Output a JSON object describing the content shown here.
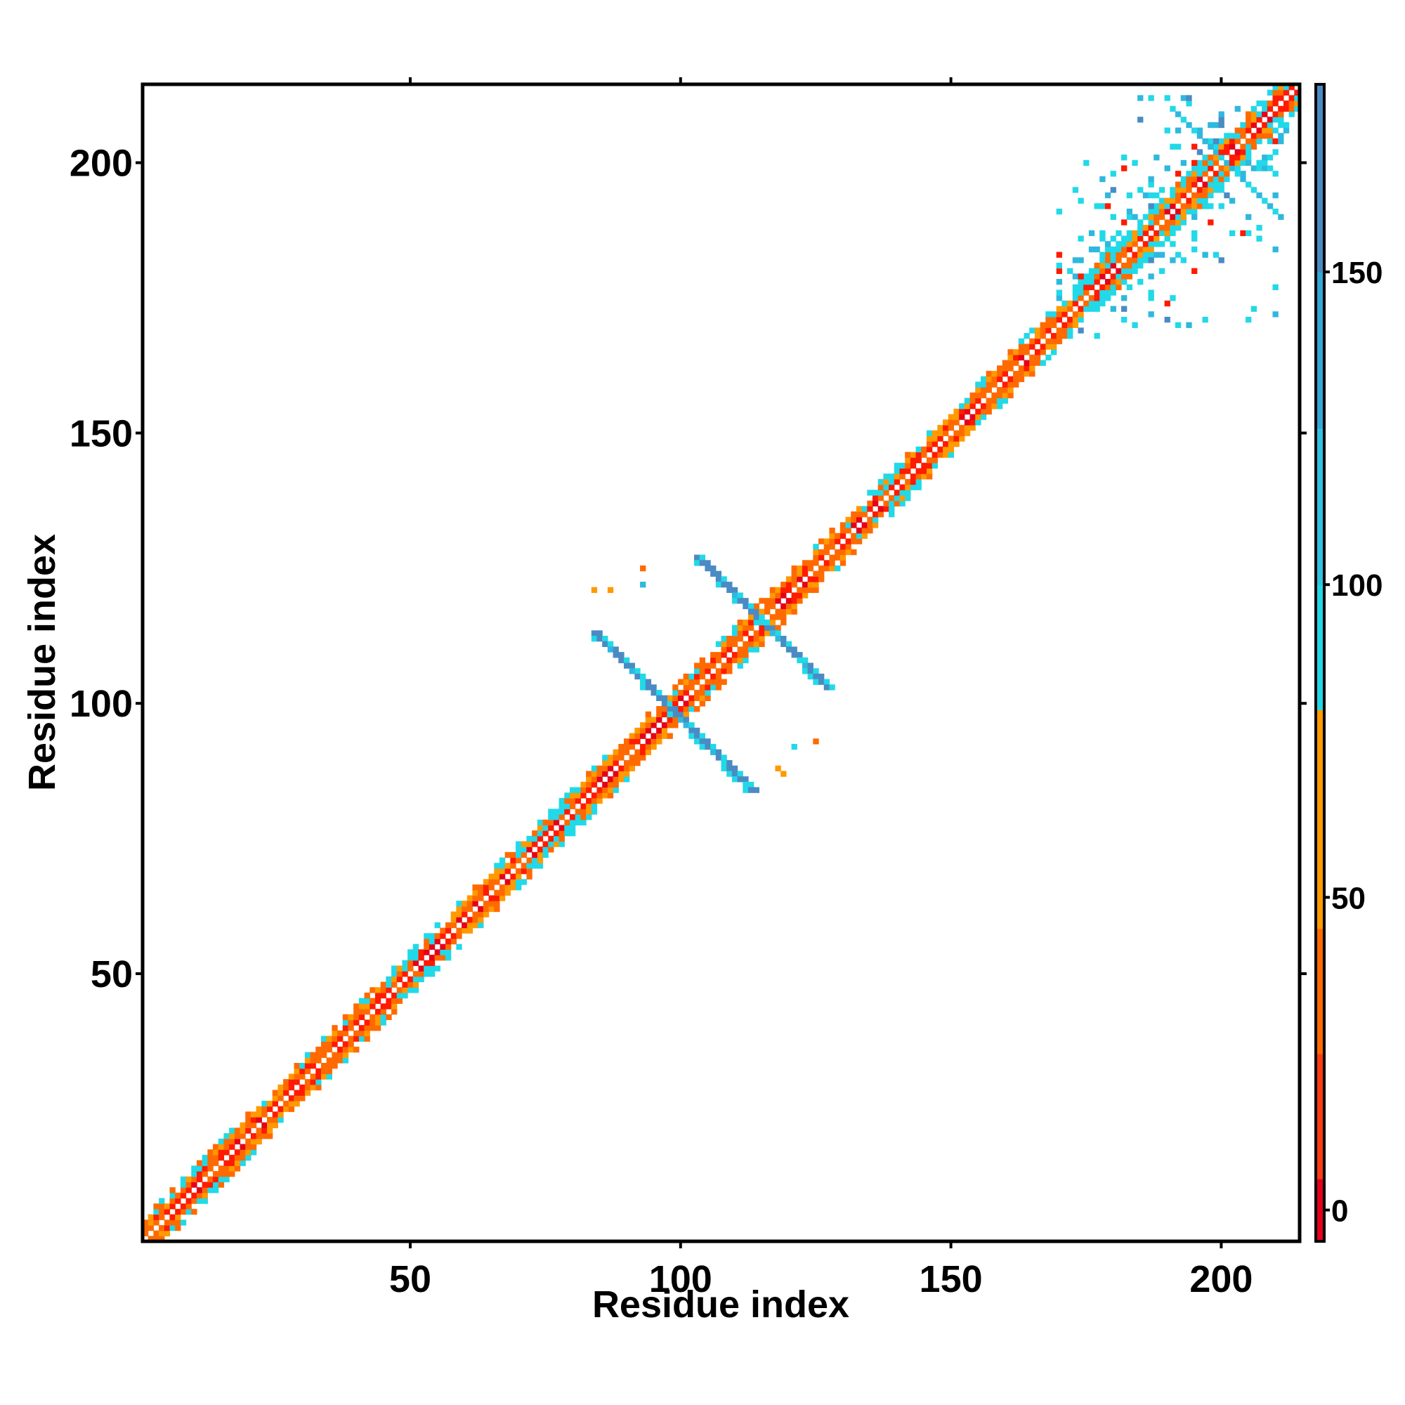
{
  "chart_data": {
    "type": "heatmap",
    "title": "",
    "xlabel": "Residue index",
    "ylabel": "Residue index",
    "xlim": [
      1,
      214
    ],
    "ylim": [
      1,
      214
    ],
    "xticks": [
      50,
      100,
      150,
      200
    ],
    "yticks": [
      50,
      100,
      150,
      200
    ],
    "grid": false,
    "colorbar": {
      "position": "right",
      "range": [
        -5,
        180
      ],
      "ticks": [
        0,
        50,
        100,
        150
      ],
      "stops": [
        {
          "from": -5,
          "to": 5,
          "color": "#e4001b"
        },
        {
          "from": 5,
          "to": 25,
          "color": "#ff3a12"
        },
        {
          "from": 25,
          "to": 45,
          "color": "#ff6a00"
        },
        {
          "from": 45,
          "to": 80,
          "color": "#ff9a00"
        },
        {
          "from": 80,
          "to": 100,
          "color": "#23d6e6"
        },
        {
          "from": 100,
          "to": 125,
          "color": "#2fc3e0"
        },
        {
          "from": 125,
          "to": 150,
          "color": "#34a7d6"
        },
        {
          "from": 150,
          "to": 180,
          "color": "#4a8bc4"
        },
        {
          "from": 180,
          "to": 185,
          "color": "#ffffff"
        }
      ]
    },
    "colors": {
      "red": "#ff1a00",
      "deep_red": "#e4001b",
      "orange": "#ff6a00",
      "amber": "#ff9a00",
      "cyan": "#21d9e8",
      "teal": "#2fb8de",
      "steel_blue": "#4a8bc4"
    },
    "diagonal_band": {
      "from": 1,
      "to": 214,
      "half_width": 4
    },
    "crosses": [
      {
        "center": [
          98,
          98
        ],
        "arm_from": [
          84,
          113
        ],
        "arm_to": [
          113,
          84
        ],
        "color": "steel_blue"
      },
      {
        "center": [
          114,
          114
        ],
        "arm_from": [
          103,
          127
        ],
        "arm_to": [
          127,
          103
        ],
        "color": "steel_blue"
      }
    ],
    "cluster": {
      "x_range": [
        170,
        212
      ],
      "y_range": [
        168,
        212
      ]
    },
    "scatter_points": [
      {
        "x": 84,
        "y": 121,
        "color": "amber"
      },
      {
        "x": 87,
        "y": 121,
        "color": "amber"
      },
      {
        "x": 93,
        "y": 125,
        "color": "orange"
      },
      {
        "x": 93,
        "y": 122,
        "color": "teal"
      },
      {
        "x": 121,
        "y": 92,
        "color": "cyan"
      },
      {
        "x": 125,
        "y": 93,
        "color": "orange"
      },
      {
        "x": 119,
        "y": 87,
        "color": "amber"
      },
      {
        "x": 118,
        "y": 88,
        "color": "amber"
      }
    ]
  }
}
